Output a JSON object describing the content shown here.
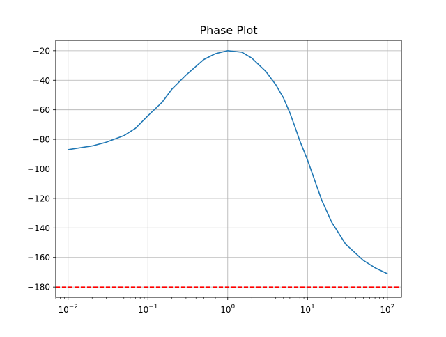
{
  "chart_data": {
    "type": "line",
    "title": "Phase Plot",
    "xlabel": "",
    "ylabel": "",
    "xscale": "log",
    "xlim": [
      0.007,
      150
    ],
    "ylim": [
      -187,
      -13
    ],
    "grid": true,
    "x_ticks": [
      {
        "value": 0.01,
        "base": "10",
        "exp": "−2"
      },
      {
        "value": 0.1,
        "base": "10",
        "exp": "−1"
      },
      {
        "value": 1,
        "base": "10",
        "exp": "0"
      },
      {
        "value": 10,
        "base": "10",
        "exp": "1"
      },
      {
        "value": 100,
        "base": "10",
        "exp": "2"
      }
    ],
    "y_ticks": [
      {
        "value": -20,
        "label": "−20"
      },
      {
        "value": -40,
        "label": "−40"
      },
      {
        "value": -60,
        "label": "−60"
      },
      {
        "value": -80,
        "label": "−80"
      },
      {
        "value": -100,
        "label": "−100"
      },
      {
        "value": -120,
        "label": "−120"
      },
      {
        "value": -140,
        "label": "−140"
      },
      {
        "value": -160,
        "label": "−160"
      },
      {
        "value": -180,
        "label": "−180"
      }
    ],
    "series": [
      {
        "color": "#1f77b4",
        "x": [
          0.01,
          0.02,
          0.03,
          0.05,
          0.07,
          0.1,
          0.15,
          0.2,
          0.3,
          0.5,
          0.7,
          1.0,
          1.5,
          2.0,
          3.0,
          4.0,
          5.0,
          6.0,
          7.0,
          8.0,
          10.0,
          15.0,
          20.0,
          30.0,
          50.0,
          70.0,
          100.0
        ],
        "y": [
          -87,
          -84.5,
          -82,
          -77.5,
          -72.5,
          -64,
          -55,
          -46,
          -36.5,
          -26,
          -22,
          -20,
          -21,
          -25,
          -34,
          -43,
          -52,
          -62,
          -72,
          -81,
          -94,
          -121,
          -136,
          -151,
          -162,
          -167,
          -171
        ]
      }
    ],
    "reference_lines": [
      {
        "y": -180,
        "color": "#ff0000",
        "style": "dashed"
      }
    ]
  }
}
